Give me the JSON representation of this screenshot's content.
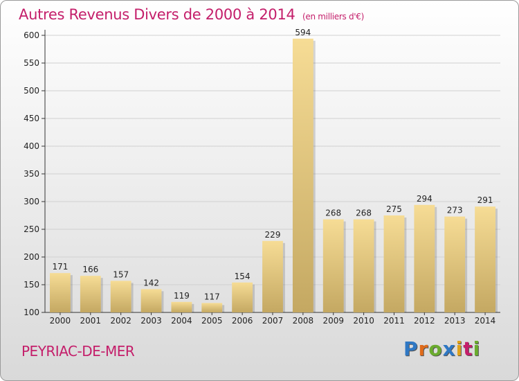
{
  "title": "Autres Revenus Divers de 2000 à 2014",
  "title_unit": "(en milliers d'€)",
  "location": "PEYRIAC-DE-MER",
  "logo": {
    "text": "Proxiti",
    "letters": [
      {
        "ch": "P",
        "color": "#2f78c4"
      },
      {
        "ch": "r",
        "color": "#e06b1a"
      },
      {
        "ch": "o",
        "color": "#6aab2e"
      },
      {
        "ch": "x",
        "color": "#2f78c4"
      },
      {
        "ch": "i",
        "color": "#e0a21a"
      },
      {
        "ch": "t",
        "color": "#c41e6a"
      },
      {
        "ch": "i",
        "color": "#6aab2e"
      }
    ]
  },
  "colors": {
    "title": "#c41e6a",
    "bar_light": "#f6dc95",
    "bar_dark": "#c4a862",
    "grid": "#d0d0d0"
  },
  "chart_data": {
    "type": "bar",
    "title": "Autres Revenus Divers de 2000 à 2014",
    "subtitle": "(en milliers d'€)",
    "categories": [
      "2000",
      "2001",
      "2002",
      "2003",
      "2004",
      "2005",
      "2006",
      "2007",
      "2008",
      "2009",
      "2010",
      "2011",
      "2012",
      "2013",
      "2014"
    ],
    "values": [
      171,
      166,
      157,
      142,
      119,
      117,
      154,
      229,
      594,
      268,
      268,
      275,
      294,
      273,
      291
    ],
    "ylim": [
      100,
      600
    ],
    "yticks": [
      100,
      150,
      200,
      250,
      300,
      350,
      400,
      450,
      500,
      550,
      600
    ],
    "grid": true,
    "legend": "none"
  }
}
